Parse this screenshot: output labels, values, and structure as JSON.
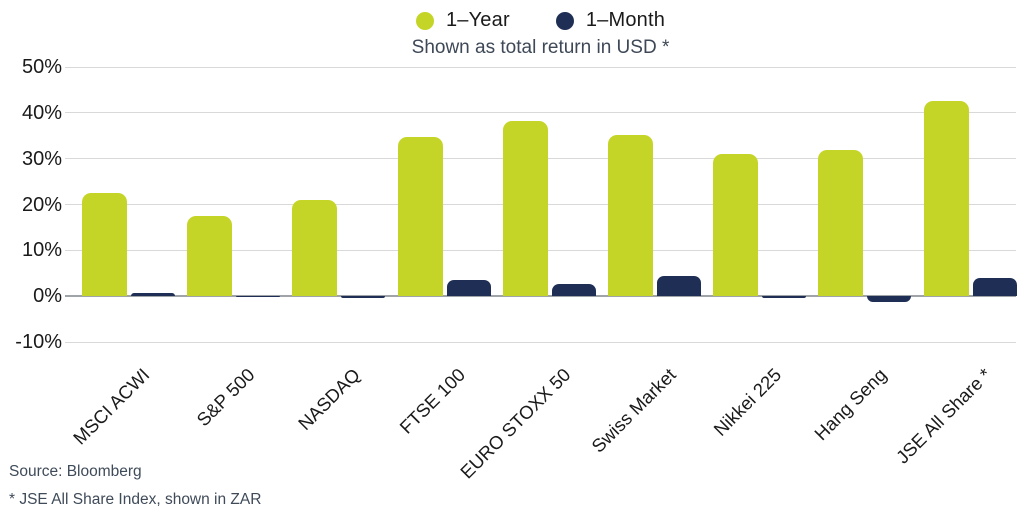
{
  "legend": {
    "items": [
      {
        "label": "1–Year",
        "color": "#c5d528"
      },
      {
        "label": "1–Month",
        "color": "#1e2e54"
      }
    ]
  },
  "subtitle": "Shown as total return in USD *",
  "chart_data": {
    "type": "bar",
    "categories": [
      "MSCI ACWI",
      "S&P 500",
      "NASDAQ",
      "FTSE 100",
      "EURO STOXX 50",
      "Swiss Market",
      "Nikkei 225",
      "Hang Seng",
      "JSE All Share *"
    ],
    "series": [
      {
        "name": "1–Year",
        "color": "#c5d528",
        "values": [
          22.5,
          17.5,
          21.0,
          34.8,
          38.2,
          35.2,
          31.0,
          32.0,
          42.5
        ]
      },
      {
        "name": "1–Month",
        "color": "#1e2e54",
        "values": [
          0.8,
          0.1,
          -0.4,
          3.5,
          2.7,
          4.4,
          -0.5,
          -1.2,
          4.0
        ]
      }
    ],
    "title": "",
    "subtitle": "Shown as total return in USD *",
    "xlabel": "",
    "ylabel": "",
    "ylim": [
      -10,
      50
    ],
    "yticks": [
      50,
      40,
      30,
      20,
      10,
      0,
      -10
    ],
    "ytick_labels": [
      "50%",
      "40%",
      "30%",
      "20%",
      "10%",
      "0%",
      "-10%"
    ],
    "grid": "horizontal",
    "legend_position": "top-center"
  },
  "footer": {
    "source": "Source: Bloomberg",
    "note": "* JSE All Share Index, shown in ZAR"
  }
}
